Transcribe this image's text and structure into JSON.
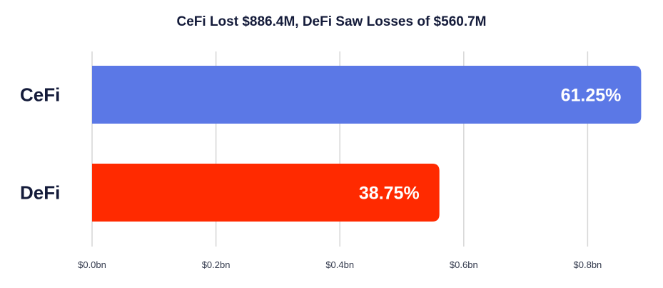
{
  "chart_data": {
    "type": "bar",
    "orientation": "horizontal",
    "title": "CeFi Lost $886.4M, DeFi Saw Losses of $560.7M",
    "categories": [
      "CeFi",
      "DeFi"
    ],
    "values": [
      0.8864,
      0.5607
    ],
    "value_labels": [
      "61.25%",
      "38.75%"
    ],
    "colors": [
      "#5b78e6",
      "#ff2a00"
    ],
    "xticks": [
      0.0,
      0.2,
      0.4,
      0.6,
      0.8
    ],
    "xtick_labels": [
      "$0.0bn",
      "$0.2bn",
      "$0.4bn",
      "$0.6bn",
      "$0.8bn"
    ],
    "xlim": [
      0.0,
      0.8864
    ],
    "grid": true,
    "legend": "none"
  }
}
